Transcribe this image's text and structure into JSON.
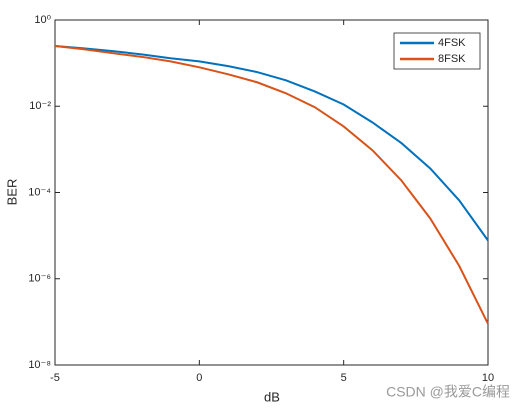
{
  "chart_data": {
    "type": "line",
    "xlabel": "dB",
    "ylabel": "BER",
    "x": [
      -5,
      -4,
      -3,
      -2,
      -1,
      0,
      1,
      2,
      3,
      4,
      5,
      6,
      7,
      8,
      9,
      10
    ],
    "series": [
      {
        "name": "4FSK",
        "color": "#0072bd",
        "values": [
          0.25,
          0.22,
          0.19,
          0.16,
          0.13,
          0.11,
          0.085,
          0.062,
          0.04,
          0.022,
          0.011,
          0.0042,
          0.0014,
          0.00036,
          6.6e-05,
          7.7e-06
        ]
      },
      {
        "name": "8FSK",
        "color": "#d95319",
        "values": [
          0.25,
          0.21,
          0.17,
          0.14,
          0.11,
          0.08,
          0.055,
          0.036,
          0.02,
          0.0095,
          0.0034,
          0.00095,
          0.00019,
          2.5e-05,
          2e-06,
          9e-08
        ]
      }
    ],
    "xlim": [
      -5,
      10
    ],
    "xticks": [
      -5,
      0,
      5,
      10
    ],
    "ylim": [
      1e-08,
      1
    ],
    "yticks": [
      {
        "value": 1e-08,
        "label": "10⁻⁸"
      },
      {
        "value": 1e-06,
        "label": "10⁻⁶"
      },
      {
        "value": 0.0001,
        "label": "10⁻⁴"
      },
      {
        "value": 0.01,
        "label": "10⁻²"
      },
      {
        "value": 1,
        "label": "10⁰"
      }
    ],
    "log_y": true,
    "grid": false,
    "legend": "upper right",
    "watermark": "CSDN @我爱C编程"
  }
}
